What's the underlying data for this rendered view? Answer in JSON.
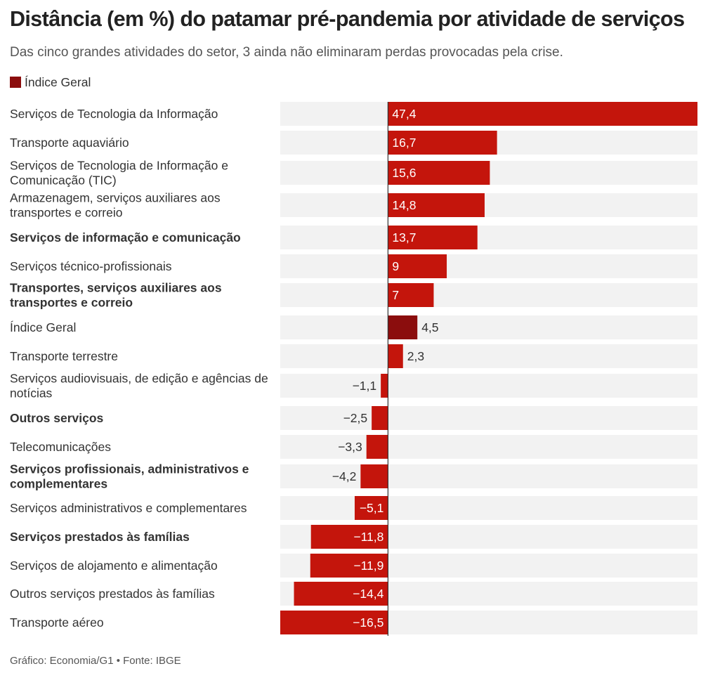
{
  "title": "Distância (em %) do patamar pré-pandemia por atividade de serviços",
  "subtitle": "Das cinco grandes atividades do setor, 3 ainda não eliminaram perdas provocadas pela crise.",
  "legend": {
    "label": "Índice Geral"
  },
  "footer": "Gráfico: Economia/G1 • Fonte: IBGE",
  "colors": {
    "bar": "#c4150c",
    "highlight": "#8b0d0d",
    "track": "#f2f2f2",
    "axis": "#333333",
    "value_inside": "#ffffff",
    "value_outside": "#333333"
  },
  "chart_data": {
    "type": "bar",
    "orientation": "horizontal",
    "xlim": [
      -16.5,
      47.4
    ],
    "categories": [
      "Serviços de Tecnologia da Informação",
      "Transporte aquaviário",
      "Serviços de Tecnologia de Informação e Comunicação (TIC)",
      "Armazenagem, serviços auxiliares aos transportes e correio",
      "Serviços de informação e comunicação",
      "Serviços técnico-profissionais",
      "Transportes, serviços auxiliares aos transportes e correio",
      "Índice Geral",
      "Transporte terrestre",
      "Serviços audiovisuais, de edição e agências de notícias",
      "Outros serviços",
      "Telecomunicações",
      "Serviços profissionais, administrativos e complementares",
      "Serviços administrativos e complementares",
      "Serviços prestados às famílias",
      "Serviços de alojamento e alimentação",
      "Outros serviços prestados às famílias",
      "Transporte aéreo"
    ],
    "label_lines": [
      [
        "Serviços de Tecnologia da Informação"
      ],
      [
        "Transporte aquaviário"
      ],
      [
        "Serviços de Tecnologia de Informação e",
        "Comunicação (TIC)"
      ],
      [
        "Armazenagem, serviços auxiliares aos",
        "transportes e correio"
      ],
      [
        "Serviços de informação e comunicação"
      ],
      [
        "Serviços técnico-profissionais"
      ],
      [
        "Transportes, serviços auxiliares aos",
        "transportes e correio"
      ],
      [
        "Índice Geral"
      ],
      [
        "Transporte terrestre"
      ],
      [
        "Serviços audiovisuais, de edição e agências de",
        "notícias"
      ],
      [
        "Outros serviços"
      ],
      [
        "Telecomunicações"
      ],
      [
        "Serviços profissionais, administrativos e",
        "complementares"
      ],
      [
        "Serviços administrativos e complementares"
      ],
      [
        "Serviços prestados às famílias"
      ],
      [
        "Serviços de alojamento e alimentação"
      ],
      [
        "Outros serviços prestados às famílias"
      ],
      [
        "Transporte aéreo"
      ]
    ],
    "values": [
      47.4,
      16.7,
      15.6,
      14.8,
      13.7,
      9,
      7,
      4.5,
      2.3,
      -1.1,
      -2.5,
      -3.3,
      -4.2,
      -5.1,
      -11.8,
      -11.9,
      -14.4,
      -16.5
    ],
    "value_labels": [
      "47,4",
      "16,7",
      "15,6",
      "14,8",
      "13,7",
      "9",
      "7",
      "4,5",
      "2,3",
      "−1,1",
      "−2,5",
      "−3,3",
      "−4,2",
      "−5,1",
      "−11,8",
      "−11,9",
      "−14,4",
      "−16,5"
    ],
    "bold": [
      false,
      false,
      false,
      false,
      true,
      false,
      true,
      false,
      false,
      false,
      true,
      false,
      true,
      false,
      true,
      false,
      false,
      false
    ],
    "highlight": [
      false,
      false,
      false,
      false,
      false,
      false,
      false,
      true,
      false,
      false,
      false,
      false,
      false,
      false,
      false,
      false,
      false,
      false
    ]
  }
}
